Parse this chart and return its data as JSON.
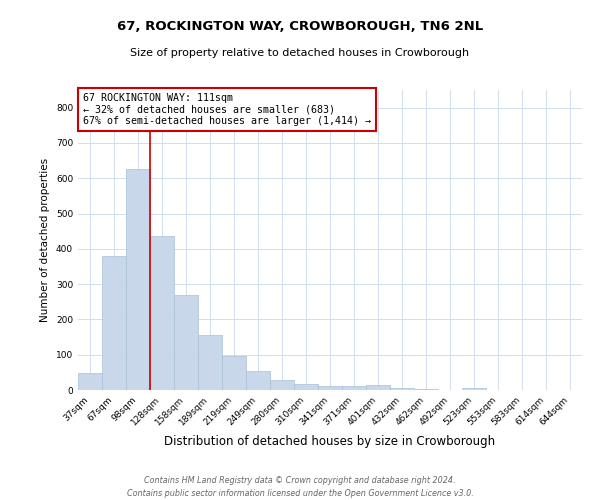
{
  "title": "67, ROCKINGTON WAY, CROWBOROUGH, TN6 2NL",
  "subtitle": "Size of property relative to detached houses in Crowborough",
  "xlabel": "Distribution of detached houses by size in Crowborough",
  "ylabel": "Number of detached properties",
  "bar_color": "#c8d8ea",
  "bar_edge_color": "#a8c0d8",
  "categories": [
    "37sqm",
    "67sqm",
    "98sqm",
    "128sqm",
    "158sqm",
    "189sqm",
    "219sqm",
    "249sqm",
    "280sqm",
    "310sqm",
    "341sqm",
    "371sqm",
    "401sqm",
    "432sqm",
    "462sqm",
    "492sqm",
    "523sqm",
    "553sqm",
    "583sqm",
    "614sqm",
    "644sqm"
  ],
  "values": [
    48,
    380,
    625,
    437,
    268,
    155,
    96,
    53,
    29,
    18,
    11,
    11,
    15,
    7,
    2,
    0,
    7,
    0,
    0,
    0,
    0
  ],
  "ylim": [
    0,
    850
  ],
  "yticks": [
    0,
    100,
    200,
    300,
    400,
    500,
    600,
    700,
    800
  ],
  "property_line_x": 2.5,
  "property_line_color": "#cc0000",
  "annotation_text": "67 ROCKINGTON WAY: 111sqm\n← 32% of detached houses are smaller (683)\n67% of semi-detached houses are larger (1,414) →",
  "annotation_box_color": "#ffffff",
  "annotation_box_edge_color": "#cc0000",
  "footer_line1": "Contains HM Land Registry data © Crown copyright and database right 2024.",
  "footer_line2": "Contains public sector information licensed under the Open Government Licence v3.0."
}
